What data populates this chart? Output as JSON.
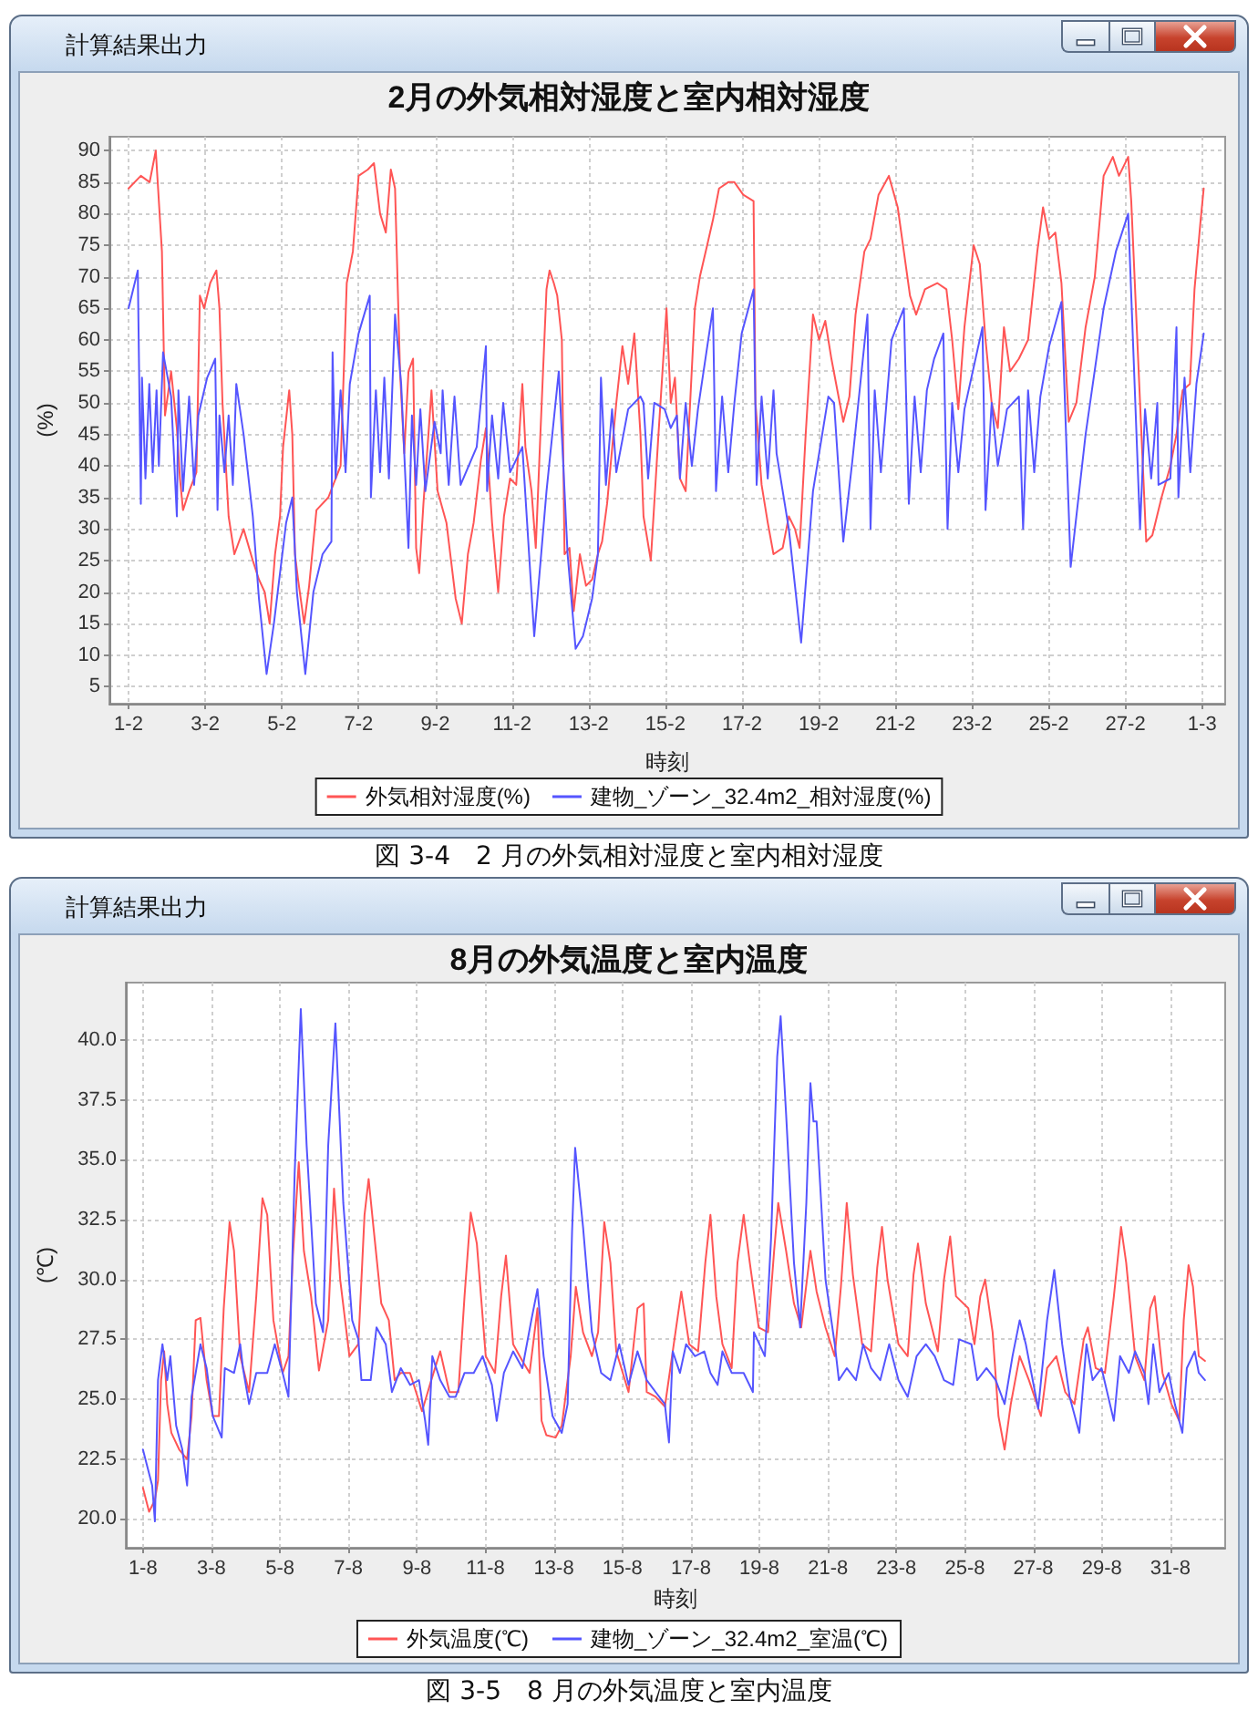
{
  "chart_data": [
    {
      "type": "line",
      "title": "2月の外気相対湿度と室内相対湿度",
      "xlabel": "時刻",
      "ylabel": "(%)",
      "annotations": [
        "計算結果出力",
        "図 3-4　2 月の外気相対湿度と室内相対湿度"
      ],
      "xlim": [
        "--01-31T12:00",
        "--03-01T14:24"
      ],
      "xticks": [
        {
          "value": "--02-01",
          "label": "1-2"
        },
        {
          "value": "--02-03",
          "label": "3-2"
        },
        {
          "value": "--02-05",
          "label": "5-2"
        },
        {
          "value": "--02-07",
          "label": "7-2"
        },
        {
          "value": "--02-09",
          "label": "9-2"
        },
        {
          "value": "--02-11",
          "label": "11-2"
        },
        {
          "value": "--02-13",
          "label": "13-2"
        },
        {
          "value": "--02-15",
          "label": "15-2"
        },
        {
          "value": "--02-17",
          "label": "17-2"
        },
        {
          "value": "--02-19",
          "label": "19-2"
        },
        {
          "value": "--02-21",
          "label": "21-2"
        },
        {
          "value": "--02-23",
          "label": "23-2"
        },
        {
          "value": "--02-25",
          "label": "25-2"
        },
        {
          "value": "--02-27",
          "label": "27-2"
        },
        {
          "value": "--03-01",
          "label": "1-3"
        }
      ],
      "ylim": [
        2.3,
        92.2
      ],
      "yticks": [
        5,
        10,
        15,
        20,
        25,
        30,
        35,
        40,
        45,
        50,
        55,
        60,
        65,
        70,
        75,
        80,
        85,
        90
      ],
      "grid": true,
      "legend": "bottom",
      "marker": "none",
      "line_style": "solid",
      "series": [
        {
          "name": "外気相対湿度(%)",
          "color": "#ff5555",
          "x": [
            "--02-01T00:00",
            "--02-01T07:41",
            "--02-01T13:12",
            "--02-01T17:02",
            "--02-01T20:53",
            "--02-01T22:48",
            "--02-02T02:38",
            "--02-02T06:14",
            "--02-02T08:10",
            "--02-02T10:05",
            "--02-02T13:55",
            "--02-02T18:29",
            "--02-02T20:38",
            "--02-02T23:17",
            "--02-03T03:07",
            "--02-03T06:58",
            "--02-03T08:53",
            "--02-03T10:48",
            "--02-03T14:38",
            "--02-03T18:14",
            "--02-04T00:00",
            "--02-04T05:46",
            "--02-04T09:36",
            "--02-04T13:12",
            "--02-04T16:19",
            "--02-04T19:41",
            "--02-04T22:48",
            "--02-05T00:43",
            "--02-05T04:34",
            "--02-05T06:29",
            "--02-05T08:10",
            "--02-05T10:05",
            "--02-05T13:55",
            "--02-05T17:02",
            "--02-05T21:36",
            "--02-06T05:02",
            "--02-06T12:43",
            "--02-06T16:34",
            "--02-06T20:24",
            "--02-07T00:00",
            "--02-07T05:46",
            "--02-07T09:36",
            "--02-07T13:26",
            "--02-07T17:02",
            "--02-07T20:10",
            "--02-07T22:48",
            "--02-08T01:55",
            "--02-08T04:34",
            "--02-08T07:12",
            "--02-08T10:05",
            "--02-08T12:00",
            "--02-08T13:55",
            "--02-08T16:34",
            "--02-08T19:41",
            "--02-08T21:36",
            "--02-09T01:26",
            "--02-09T06:58",
            "--02-09T12:43",
            "--02-09T16:34",
            "--02-09T20:24",
            "--02-10T00:00",
            "--02-10T04:34",
            "--02-10T07:41",
            "--02-10T11:31",
            "--02-10T15:22",
            "--02-10T18:58",
            "--02-10T22:48",
            "--02-11T02:38",
            "--02-11T06:29",
            "--02-11T08:24",
            "--02-11T12:14",
            "--02-11T14:53",
            "--02-11T17:46",
            "--02-11T21:36",
            "--02-11T23:31",
            "--02-12T02:10",
            "--02-12T04:19",
            "--02-12T07:12",
            "--02-12T08:53",
            "--02-12T12:00",
            "--02-12T14:38",
            "--02-12T18:29",
            "--02-12T22:19",
            "--02-13T02:10",
            "--02-13T05:46",
            "--02-13T08:24",
            "--02-13T11:31",
            "--02-13T17:17",
            "--02-13T21:07",
            "--02-14T00:43",
            "--02-14T04:34",
            "--02-14T08:24",
            "--02-14T10:19",
            "--02-14T14:53",
            "--02-14T19:41",
            "--02-15T00:43",
            "--02-15T03:22",
            "--02-15T06:00",
            "--02-15T09:07",
            "--02-15T12:43",
            "--02-15T18:29",
            "--02-15T21:36",
            "--02-16T02:10",
            "--02-16T05:46",
            "--02-16T09:36",
            "--02-16T15:22",
            "--02-16T19:12",
            "--02-17T00:43",
            "--02-17T07:12",
            "--02-17T08:24",
            "--02-17T12:14",
            "--02-17T16:05",
            "--02-17T19:41",
            "--02-18T01:26",
            "--02-18T05:17",
            "--02-18T09:07",
            "--02-18T12:00",
            "--02-18T15:50",
            "--02-18T20:24",
            "--02-19T00:14",
            "--02-19T04:05",
            "--02-19T07:55",
            "--02-19T15:22",
            "--02-19T19:12",
            "--02-19T23:02",
            "--02-20T04:34",
            "--02-20T08:24",
            "--02-20T13:26",
            "--02-20T19:55",
            "--02-21T01:26",
            "--02-21T05:17",
            "--02-21T09:07",
            "--02-21T12:58",
            "--02-21T18:29",
            "--02-22T02:10",
            "--02-22T07:55",
            "--02-22T11:31",
            "--02-22T15:22",
            "--02-22T19:12",
            "--02-23T00:58",
            "--02-23T04:48",
            "--02-23T08:24",
            "--02-23T12:14",
            "--02-23T16:05",
            "--02-23T19:55",
            "--02-23T23:46",
            "--02-24T05:17",
            "--02-24T11:02",
            "--02-24T16:48",
            "--02-24T20:24",
            "--02-25T00:14",
            "--02-25T04:05",
            "--02-25T07:55",
            "--02-25T12:29",
            "--02-25T17:17",
            "--02-25T23:02",
            "--02-26T04:48",
            "--02-26T10:19",
            "--02-26T16:05",
            "--02-26T19:55",
            "--02-27T01:41",
            "--02-27T03:36",
            "--02-27T09:07",
            "--02-27T12:58",
            "--02-27T16:48",
            "--02-27T22:34",
            "--02-28T04:05",
            "--02-28T07:55",
            "--02-28T11:46",
            "--02-28T16:19",
            "--02-28T19:12",
            "--02-28T23:02",
            "--03-01T00:58"
          ],
          "values": [
            84,
            86,
            85,
            90,
            74,
            48,
            55,
            46,
            38,
            33,
            36,
            39,
            67,
            65,
            69,
            71,
            65,
            50,
            32,
            26,
            30,
            25,
            22,
            20,
            15,
            26,
            32,
            43,
            52,
            45,
            26,
            22,
            15,
            21,
            33,
            35,
            40,
            69,
            74,
            86,
            87,
            88,
            80,
            77,
            87,
            84,
            55,
            42,
            55,
            57,
            27,
            23,
            34,
            45,
            52,
            36,
            31,
            19,
            15,
            26,
            31,
            41,
            46,
            31,
            20,
            32,
            38,
            37,
            53,
            43,
            36,
            27,
            45,
            68,
            71,
            69,
            67,
            60,
            26,
            27,
            17,
            26,
            21,
            22,
            26,
            28,
            34,
            50,
            59,
            53,
            61,
            45,
            32,
            25,
            45,
            65,
            50,
            54,
            38,
            36,
            65,
            70,
            75,
            79,
            84,
            85,
            85,
            83,
            82,
            50,
            37,
            31,
            26,
            27,
            32,
            30,
            27,
            45,
            64,
            60,
            63,
            57,
            47,
            51,
            64,
            74,
            76,
            83,
            86,
            81,
            74,
            67,
            64,
            68,
            69,
            68,
            60,
            49,
            62,
            75,
            72,
            60,
            50,
            46,
            62,
            55,
            57,
            60,
            74,
            81,
            76,
            77,
            69,
            47,
            50,
            62,
            70,
            86,
            89,
            86,
            89,
            82,
            50,
            28,
            29,
            35,
            40,
            45,
            52,
            53,
            68,
            79,
            84
          ]
        },
        {
          "name": "建物_ゾーン_32.4m2_相対湿度(%)",
          "color": "#5555ff",
          "x": [
            "--02-01T00:00",
            "--02-01T05:46",
            "--02-01T07:41",
            "--02-01T08:24",
            "--02-01T10:34",
            "--02-01T12:58",
            "--02-01T15:07",
            "--02-01T17:31",
            "--02-01T18:58",
            "--02-01T21:36",
            "--02-02T02:38",
            "--02-02T06:14",
            "--02-02T07:12",
            "--02-02T10:05",
            "--02-02T13:55",
            "--02-02T17:02",
            "--02-02T19:41",
            "--02-03T01:12",
            "--02-03T06:14",
            "--02-03T07:41",
            "--02-03T08:53",
            "--02-03T12:00",
            "--02-03T14:38",
            "--02-03T17:17",
            "--02-03T19:26",
            "--02-04T00:00",
            "--02-04T05:46",
            "--02-04T09:36",
            "--02-04T14:24",
            "--02-04T18:58",
            "--02-05T02:38",
            "--02-05T06:29",
            "--02-05T09:22",
            "--02-05T14:38",
            "--02-05T19:41",
            "--02-06T01:26",
            "--02-06T06:58",
            "--02-06T07:41",
            "--02-06T09:36",
            "--02-06T12:43",
            "--02-06T15:50",
            "--02-06T18:29",
            "--02-07T00:00",
            "--02-07T06:58",
            "--02-07T07:41",
            "--02-07T10:48",
            "--02-07T13:26",
            "--02-07T16:05",
            "--02-07T18:58",
            "--02-07T22:48",
            "--02-08T02:38",
            "--02-08T07:12",
            "--02-08T09:22",
            "--02-08T12:00",
            "--02-08T14:38",
            "--02-08T17:46",
            "--02-08T23:31",
            "--02-09T03:22",
            "--02-09T04:34",
            "--02-09T08:24",
            "--02-09T12:00",
            "--02-09T15:50",
            "--02-10T01:55",
            "--02-10T07:41",
            "--02-10T08:24",
            "--02-10T11:31",
            "--02-10T15:22",
            "--02-10T18:29",
            "--02-10T22:48",
            "--02-11T06:29",
            "--02-11T13:55",
            "--02-11T21:36",
            "--02-12T05:17",
            "--02-12T10:48",
            "--02-12T15:50",
            "--02-12T20:24",
            "--02-13T02:10",
            "--02-13T05:46",
            "--02-13T07:41",
            "--02-13T10:48",
            "--02-13T14:38",
            "--02-13T17:17",
            "--02-14T00:43",
            "--02-14T08:24",
            "--02-14T10:19",
            "--02-14T13:12",
            "--02-14T17:02",
            "--02-14T23:31",
            "--02-15T03:22",
            "--02-15T07:12",
            "--02-15T09:07",
            "--02-15T12:43",
            "--02-15T16:34",
            "--02-15T20:24",
            "--02-16T05:46",
            "--02-16T07:41",
            "--02-16T11:31",
            "--02-16T15:22",
            "--02-16T19:12",
            "--02-16T23:46",
            "--02-17T07:12",
            "--02-17T09:07",
            "--02-17T12:14",
            "--02-17T16:05",
            "--02-17T19:41",
            "--02-17T21:36",
            "--02-18T05:17",
            "--02-18T12:58",
            "--02-18T20:24",
            "--02-19T06:00",
            "--02-19T09:36",
            "--02-19T15:22",
            "--02-19T21:07",
            "--02-20T06:29",
            "--02-20T08:24",
            "--02-20T11:02",
            "--02-20T14:53",
            "--02-20T18:43",
            "--02-20T21:36",
            "--02-21T05:17",
            "--02-21T08:24",
            "--02-21T12:00",
            "--02-21T15:50",
            "--02-21T19:41",
            "--02-22T00:14",
            "--02-22T06:00",
            "--02-22T08:38",
            "--02-22T11:31",
            "--02-22T15:22",
            "--02-22T19:12",
            "--02-23T06:29",
            "--02-23T08:24",
            "--02-23T12:14",
            "--02-23T16:05",
            "--02-23T21:50",
            "--02-24T05:17",
            "--02-24T07:55",
            "--02-24T11:02",
            "--02-24T14:53",
            "--02-24T18:43",
            "--02-25T00:14",
            "--02-25T07:55",
            "--02-25T13:41",
            "--02-25T23:02",
            "--02-26T10:19",
            "--02-26T18:00",
            "--02-27T01:41",
            "--02-27T09:07",
            "--02-27T12:14",
            "--02-27T16:05",
            "--02-27T19:55",
            "--02-27T20:38",
            "--02-28T04:05",
            "--02-28T07:55",
            "--02-28T09:07",
            "--02-28T12:58",
            "--02-28T16:34",
            "--02-28T20:24",
            "--03-01T00:58"
          ],
          "values": [
            65,
            71,
            34,
            54,
            38,
            53,
            39,
            52,
            40,
            58,
            51,
            32,
            52,
            36,
            51,
            37,
            48,
            54,
            57,
            33,
            48,
            39,
            48,
            37,
            53,
            45,
            32,
            19,
            7,
            15,
            31,
            35,
            20,
            7,
            20,
            26,
            28,
            58,
            38,
            52,
            39,
            53,
            61,
            67,
            35,
            52,
            39,
            54,
            38,
            64,
            53,
            27,
            48,
            37,
            49,
            36,
            47,
            42,
            52,
            37,
            51,
            37,
            43,
            59,
            36,
            48,
            38,
            50,
            39,
            43,
            13,
            36,
            55,
            26,
            11,
            13,
            19,
            26,
            54,
            37,
            49,
            39,
            49,
            51,
            50,
            38,
            50,
            49,
            46,
            48,
            38,
            50,
            40,
            49,
            65,
            36,
            51,
            39,
            50,
            61,
            68,
            37,
            51,
            38,
            52,
            42,
            30,
            12,
            36,
            51,
            50,
            28,
            41,
            64,
            30,
            52,
            39,
            51,
            60,
            65,
            34,
            51,
            39,
            52,
            57,
            61,
            30,
            50,
            39,
            49,
            62,
            33,
            50,
            40,
            49,
            51,
            30,
            52,
            39,
            51,
            59,
            66,
            24,
            45,
            65,
            74,
            80,
            30,
            49,
            38,
            50,
            37,
            38,
            62,
            35,
            54,
            39,
            53,
            61
          ]
        }
      ]
    },
    {
      "type": "line",
      "title": "8月の外気温度と室内温度",
      "xlabel": "時刻",
      "ylabel": "(℃)",
      "annotations": [
        "計算結果出力",
        "図 3-5　8 月の外気温度と室内温度"
      ],
      "xlim": [
        "--07-31T12:00",
        "--09-01T14:24"
      ],
      "xticks": [
        {
          "value": "--08-01",
          "label": "1-8"
        },
        {
          "value": "--08-03",
          "label": "3-8"
        },
        {
          "value": "--08-05",
          "label": "5-8"
        },
        {
          "value": "--08-07",
          "label": "7-8"
        },
        {
          "value": "--08-09",
          "label": "9-8"
        },
        {
          "value": "--08-11",
          "label": "11-8"
        },
        {
          "value": "--08-13",
          "label": "13-8"
        },
        {
          "value": "--08-15",
          "label": "15-8"
        },
        {
          "value": "--08-17",
          "label": "17-8"
        },
        {
          "value": "--08-19",
          "label": "19-8"
        },
        {
          "value": "--08-21",
          "label": "21-8"
        },
        {
          "value": "--08-23",
          "label": "23-8"
        },
        {
          "value": "--08-25",
          "label": "25-8"
        },
        {
          "value": "--08-27",
          "label": "27-8"
        },
        {
          "value": "--08-29",
          "label": "29-8"
        },
        {
          "value": "--08-31",
          "label": "31-8"
        }
      ],
      "ylim": [
        18.8,
        42.4
      ],
      "yticks": [
        {
          "value": 20,
          "label": "20.0"
        },
        22.5,
        {
          "value": 25,
          "label": "25.0"
        },
        27.5,
        {
          "value": 30,
          "label": "30.0"
        },
        32.5,
        {
          "value": 35,
          "label": "35.0"
        },
        37.5,
        {
          "value": 40,
          "label": "40.0"
        }
      ],
      "grid": true,
      "legend": "bottom",
      "marker": "none",
      "line_style": "solid",
      "series": [
        {
          "name": "外気温度(℃)",
          "color": "#ff5555",
          "x": [
            "--08-01T00:00",
            "--08-01T04:19",
            "--08-01T08:24",
            "--08-01T10:34",
            "--08-01T12:43",
            "--08-01T14:53",
            "--08-01T17:02",
            "--08-01T19:55",
            "--08-02T01:26",
            "--08-02T06:58",
            "--08-02T10:05",
            "--08-02T12:58",
            "--08-02T16:19",
            "--08-02T20:38",
            "--08-03T00:58",
            "--08-03T05:17",
            "--08-03T08:38",
            "--08-03T12:43",
            "--08-03T15:50",
            "--08-03T20:10",
            "--08-04T02:24",
            "--08-04T07:26",
            "--08-04T11:46",
            "--08-04T15:07",
            "--08-04T19:26",
            "--08-05T01:55",
            "--08-05T06:00",
            "--08-05T09:07",
            "--08-05T13:12",
            "--08-05T16:48",
            "--08-05T21:50",
            "--08-06T03:22",
            "--08-06T09:50",
            "--08-06T13:55",
            "--08-06T18:14",
            "--08-07T00:43",
            "--08-07T06:58",
            "--08-07T11:17",
            "--08-07T14:10",
            "--08-07T17:31",
            "--08-07T23:02",
            "--08-08T04:19",
            "--08-08T08:24",
            "--08-08T12:43",
            "--08-08T19:12",
            "--08-09T03:36",
            "--08-09T10:05",
            "--08-09T16:19",
            "--08-09T22:48",
            "--08-10T05:02",
            "--08-10T09:22",
            "--08-10T13:41",
            "--08-10T18:00",
            "--08-11T00:14",
            "--08-11T06:43",
            "--08-11T11:02",
            "--08-11T14:24",
            "--08-11T19:26",
            "--08-12T01:55",
            "--08-12T06:58",
            "--08-12T12:29",
            "--08-12T15:22",
            "--08-12T18:43",
            "--08-13T01:12",
            "--08-13T05:31",
            "--08-13T11:46",
            "--08-13T15:22",
            "--08-13T20:24",
            "--08-14T02:38",
            "--08-14T06:58",
            "--08-14T11:17",
            "--08-14T15:36",
            "--08-14T19:41",
            "--08-15T04:19",
            "--08-15T10:34",
            "--08-15T14:53",
            "--08-15T17:02",
            "--08-15T23:17",
            "--08-16T05:46",
            "--08-16T12:00",
            "--08-16T17:17",
            "--08-16T22:48",
            "--08-17T05:02",
            "--08-17T10:05",
            "--08-17T13:41",
            "--08-17T17:46",
            "--08-17T22:05",
            "--08-18T04:34",
            "--08-18T08:38",
            "--08-18T12:58",
            "--08-18T17:17",
            "--08-18T23:31",
            "--08-19T06:00",
            "--08-19T10:19",
            "--08-19T13:12",
            "--08-19T18:43",
            "--08-20T00:14",
            "--08-20T05:17",
            "--08-20T11:46",
            "--08-20T16:05",
            "--08-20T22:19",
            "--08-21T04:48",
            "--08-21T09:07",
            "--08-21T13:12",
            "--08-21T17:31",
            "--08-22T00:00",
            "--08-22T06:14",
            "--08-22T10:34",
            "--08-22T13:55",
            "--08-22T17:46",
            "--08-23T01:26",
            "--08-23T07:55",
            "--08-23T12:00",
            "--08-23T15:07",
            "--08-23T20:38",
            "--08-24T05:02",
            "--08-24T09:22",
            "--08-24T13:41",
            "--08-24T17:46",
            "--08-25T02:24",
            "--08-25T06:43",
            "--08-25T10:48",
            "--08-25T14:10",
            "--08-25T19:26",
            "--08-25T23:31",
            "--08-26T03:50",
            "--08-26T08:10",
            "--08-26T14:24",
            "--08-26T20:53",
            "--08-27T05:17",
            "--08-27T09:36",
            "--08-27T16:05",
            "--08-27T22:19",
            "--08-28T04:48",
            "--08-28T11:17",
            "--08-28T14:10",
            "--08-28T19:41",
            "--08-29T02:10",
            "--08-29T08:24",
            "--08-29T13:26",
            "--08-29T17:02",
            "--08-29T23:17",
            "--08-30T05:46",
            "--08-30T09:50",
            "--08-30T12:58",
            "--08-30T18:29",
            "--08-31T00:43",
            "--08-31T06:14",
            "--08-31T09:22",
            "--08-31T12:43",
            "--08-31T15:50",
            "--08-31T19:55",
            "--09-01T00:14"
          ],
          "values": [
            21.3,
            20.3,
            20.8,
            21.6,
            25.8,
            27.0,
            24.8,
            23.6,
            22.9,
            22.5,
            24.3,
            28.3,
            28.4,
            25.8,
            24.3,
            24.3,
            28.8,
            32.4,
            31.2,
            26.8,
            25.3,
            29.3,
            33.4,
            32.7,
            28.3,
            26.1,
            26.8,
            31.0,
            34.9,
            31.2,
            29.3,
            26.2,
            28.3,
            33.8,
            30.0,
            26.8,
            27.3,
            32.7,
            34.2,
            32.2,
            29.0,
            28.3,
            25.8,
            26.1,
            26.1,
            24.5,
            25.8,
            27.0,
            25.3,
            25.3,
            29.3,
            32.8,
            31.5,
            26.8,
            26.1,
            29.3,
            31.0,
            27.3,
            26.6,
            26.1,
            28.8,
            24.1,
            23.5,
            23.4,
            23.9,
            26.8,
            29.7,
            27.8,
            26.8,
            27.8,
            32.4,
            30.7,
            27.0,
            25.3,
            28.8,
            29.0,
            25.3,
            25.1,
            24.7,
            27.3,
            29.5,
            27.3,
            27.0,
            30.7,
            32.7,
            29.3,
            27.3,
            26.3,
            30.7,
            32.7,
            30.7,
            28.0,
            27.8,
            31.2,
            33.2,
            31.2,
            29.0,
            28.0,
            31.2,
            29.5,
            28.0,
            26.8,
            29.7,
            33.2,
            30.2,
            27.3,
            27.0,
            30.5,
            32.2,
            30.0,
            27.3,
            26.8,
            30.2,
            31.5,
            29.0,
            27.0,
            30.0,
            31.8,
            29.3,
            28.8,
            27.3,
            29.3,
            30.0,
            27.8,
            24.3,
            22.9,
            24.8,
            26.8,
            25.8,
            24.3,
            26.3,
            26.8,
            25.3,
            24.8,
            27.5,
            28.0,
            26.3,
            26.1,
            29.3,
            32.2,
            30.7,
            26.8,
            25.8,
            28.8,
            29.3,
            26.1,
            24.8,
            24.1,
            28.3,
            30.6,
            29.7,
            26.8,
            26.6
          ]
        },
        {
          "name": "建物_ゾーン_32.4m2_室温(℃)",
          "color": "#5555ff",
          "x": [
            "--08-01T00:00",
            "--08-01T06:29",
            "--08-01T08:24",
            "--08-01T10:34",
            "--08-01T13:41",
            "--08-01T17:02",
            "--08-01T19:12",
            "--08-01T23:17",
            "--08-02T03:36",
            "--08-02T06:58",
            "--08-02T10:05",
            "--08-02T12:58",
            "--08-02T16:19",
            "--08-02T20:38",
            "--08-03T00:58",
            "--08-03T07:12",
            "--08-03T09:22",
            "--08-03T15:50",
            "--08-03T20:10",
            "--08-03T22:05",
            "--08-04T02:24",
            "--08-04T07:26",
            "--08-04T15:07",
            "--08-04T20:24",
            "--08-05T01:55",
            "--08-05T06:00",
            "--08-05T10:19",
            "--08-05T14:38",
            "--08-05T18:43",
            "--08-06T01:12",
            "--08-06T06:14",
            "--08-06T09:50",
            "--08-06T14:53",
            "--08-06T20:24",
            "--08-07T02:38",
            "--08-07T06:58",
            "--08-07T09:07",
            "--08-07T15:36",
            "--08-07T19:41",
            "--08-08T02:10",
            "--08-08T06:29",
            "--08-08T12:43",
            "--08-08T19:12",
            "--08-09T01:26",
            "--08-09T05:46",
            "--08-09T07:55",
            "--08-09T10:48",
            "--08-09T16:19",
            "--08-09T22:48",
            "--08-10T03:07",
            "--08-10T09:22",
            "--08-10T15:50",
            "--08-10T22:05",
            "--08-11T04:34",
            "--08-11T07:55",
            "--08-11T12:58",
            "--08-11T19:26",
            "--08-12T01:55",
            "--08-12T08:10",
            "--08-12T12:29",
            "--08-12T16:48",
            "--08-12T23:02",
            "--08-13T05:31",
            "--08-13T09:36",
            "--08-13T12:43",
            "--08-13T14:53",
            "--08-13T20:24",
            "--08-14T02:38",
            "--08-14T09:07",
            "--08-14T15:36",
            "--08-14T21:50",
            "--08-15T04:19",
            "--08-15T10:34",
            "--08-15T17:02",
            "--08-15T23:17",
            "--08-16T05:46",
            "--08-16T08:38",
            "--08-16T11:17",
            "--08-16T16:19",
            "--08-16T20:38",
            "--08-17T02:53",
            "--08-17T09:22",
            "--08-17T13:41",
            "--08-17T18:43",
            "--08-17T22:05",
            "--08-18T04:34",
            "--08-18T12:58",
            "--08-18T19:26",
            "--08-18T20:10",
            "--08-19T03:50",
            "--08-19T08:10",
            "--08-19T12:29",
            "--08-19T14:53",
            "--08-19T18:43",
            "--08-20T00:14",
            "--08-20T04:34",
            "--08-20T08:53",
            "--08-20T11:46",
            "--08-20T13:55",
            "--08-20T16:05",
            "--08-20T22:19",
            "--08-21T04:48",
            "--08-21T07:41",
            "--08-21T13:12",
            "--08-21T19:41",
            "--08-22T00:43",
            "--08-22T06:14",
            "--08-22T12:43",
            "--08-22T18:58",
            "--08-23T01:26",
            "--08-23T07:55",
            "--08-23T14:10",
            "--08-23T20:38",
            "--08-24T02:53",
            "--08-24T09:22",
            "--08-24T15:50",
            "--08-24T19:55",
            "--08-25T04:34",
            "--08-25T08:38",
            "--08-25T15:07",
            "--08-25T21:36",
            "--08-26T03:50",
            "--08-26T09:22",
            "--08-26T14:24",
            "--08-26T18:43",
            "--08-27T03:22",
            "--08-27T09:36",
            "--08-27T14:38",
            "--08-27T20:10",
            "--08-28T01:26",
            "--08-28T08:10",
            "--08-28T13:12",
            "--08-28T17:31",
            "--08-28T23:46",
            "--08-29T08:24",
            "--08-29T12:43",
            "--08-29T18:58",
            "--08-29T23:17",
            "--08-30T05:46",
            "--08-30T08:38",
            "--08-30T12:00",
            "--08-30T16:19",
            "--08-30T22:48",
            "--08-31T03:07",
            "--08-31T08:24",
            "--08-31T11:31",
            "--08-31T17:02",
            "--08-31T19:55",
            "--09-01T00:14"
          ],
          "values": [
            22.9,
            21.4,
            19.9,
            25.8,
            27.3,
            25.8,
            26.8,
            23.9,
            22.9,
            21.4,
            25.1,
            26.1,
            27.3,
            26.3,
            24.3,
            23.4,
            26.3,
            26.1,
            27.3,
            26.3,
            24.8,
            26.1,
            26.1,
            27.3,
            26.1,
            25.1,
            34.4,
            41.3,
            35.6,
            29.0,
            27.8,
            35.6,
            40.7,
            33.2,
            28.3,
            27.5,
            25.8,
            25.8,
            28.0,
            27.3,
            25.3,
            26.3,
            25.6,
            25.8,
            24.1,
            23.1,
            26.8,
            25.8,
            25.1,
            25.1,
            26.1,
            26.1,
            26.8,
            25.6,
            24.1,
            26.1,
            27.0,
            26.3,
            28.3,
            29.6,
            26.8,
            24.3,
            23.6,
            24.8,
            32.0,
            35.5,
            32.2,
            27.8,
            26.1,
            25.8,
            27.3,
            25.6,
            27.0,
            25.8,
            25.3,
            24.8,
            23.2,
            27.0,
            26.1,
            27.3,
            26.8,
            27.0,
            26.1,
            25.6,
            27.0,
            26.1,
            26.1,
            25.3,
            27.8,
            26.8,
            31.7,
            39.3,
            41.0,
            36.9,
            30.7,
            28.0,
            33.2,
            38.2,
            36.6,
            36.6,
            30.0,
            27.3,
            25.8,
            26.3,
            25.8,
            27.3,
            26.3,
            25.8,
            27.3,
            25.8,
            25.1,
            26.8,
            27.3,
            26.8,
            25.8,
            25.6,
            27.5,
            27.3,
            25.8,
            26.3,
            25.8,
            24.8,
            26.8,
            28.3,
            27.3,
            24.6,
            28.3,
            30.4,
            27.3,
            25.1,
            23.6,
            27.3,
            25.8,
            26.3,
            24.1,
            26.8,
            26.1,
            27.0,
            26.1,
            24.8,
            27.3,
            25.3,
            26.1,
            24.8,
            23.6,
            26.3,
            27.0,
            26.1,
            25.8
          ]
        }
      ]
    }
  ]
}
